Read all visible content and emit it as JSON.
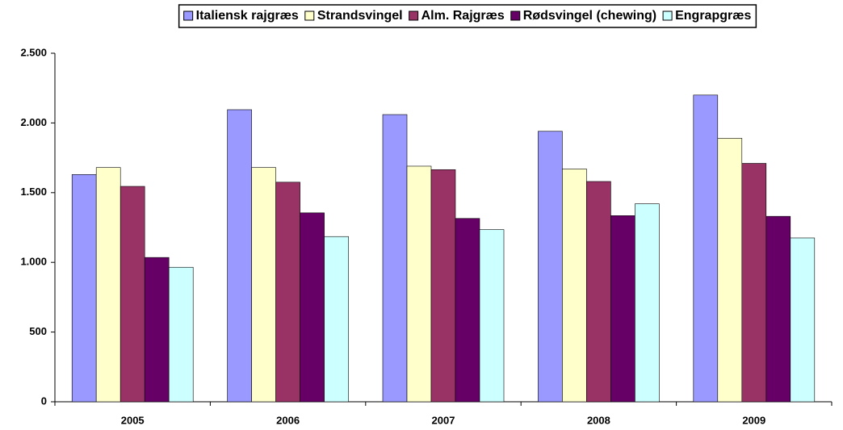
{
  "chart_data": {
    "type": "bar",
    "categories": [
      "2005",
      "2006",
      "2007",
      "2008",
      "2009"
    ],
    "series": [
      {
        "name": "Italiensk rajgræs",
        "color": "#9999ff",
        "values": [
          1630,
          2095,
          2060,
          1940,
          2200
        ]
      },
      {
        "name": "Strandsvingel",
        "color": "#ffffcc",
        "values": [
          1680,
          1680,
          1690,
          1670,
          1890
        ]
      },
      {
        "name": "Alm. Rajgræs",
        "color": "#993366",
        "values": [
          1545,
          1575,
          1665,
          1580,
          1710
        ]
      },
      {
        "name": "Rødsvingel (chewing)",
        "color": "#660066",
        "values": [
          1035,
          1355,
          1315,
          1335,
          1330
        ]
      },
      {
        "name": "Engrapgræs",
        "color": "#ccffff",
        "values": [
          965,
          1185,
          1235,
          1420,
          1175
        ]
      }
    ],
    "ylim": [
      0,
      2500
    ],
    "yticks": [
      0,
      500,
      {
        "value": 1000,
        "label": "1.000"
      },
      {
        "value": 1500,
        "label": "1.500"
      },
      {
        "value": 2000,
        "label": "2.000"
      },
      {
        "value": 2500,
        "label": "2.500"
      }
    ],
    "grid": false,
    "legend": "top"
  }
}
